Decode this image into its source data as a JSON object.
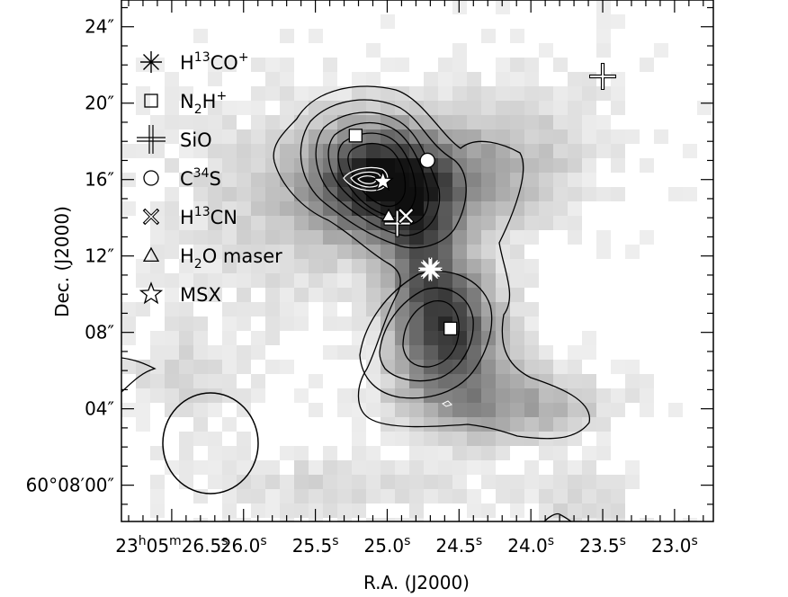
{
  "chart_data": {
    "type": "heatmap",
    "xlabel": "R.A. (J2000)",
    "ylabel": "Dec. (J2000)",
    "x_axis": {
      "unit": "seconds of R.A. (23h05m)",
      "lim": [
        26.85,
        22.73
      ],
      "inverted": true,
      "ticks": [
        {
          "value": 26.5,
          "label": "23h05m26.5s"
        },
        {
          "value": 26.0,
          "label": "26.0s"
        },
        {
          "value": 25.5,
          "label": "25.5s"
        },
        {
          "value": 25.0,
          "label": "25.0s"
        },
        {
          "value": 24.5,
          "label": "24.5s"
        },
        {
          "value": 24.0,
          "label": "24.0s"
        },
        {
          "value": 23.5,
          "label": "23.5s"
        },
        {
          "value": 23.0,
          "label": "23.0s"
        }
      ]
    },
    "y_axis": {
      "unit": "arcsec above 60d08m00s",
      "lim": [
        -1.9,
        25.4
      ],
      "ticks": [
        {
          "value": 0,
          "label": "60°08′00″"
        },
        {
          "value": 4,
          "label": "04″"
        },
        {
          "value": 8,
          "label": "08″"
        },
        {
          "value": 12,
          "label": "12″"
        },
        {
          "value": 16,
          "label": "16″"
        },
        {
          "value": 20,
          "label": "20″"
        },
        {
          "value": 24,
          "label": "24″"
        }
      ]
    },
    "grid": false,
    "colormap": "grayscale, darker = stronger emission",
    "emission_peaks": [
      {
        "ra_s": 25.02,
        "dec": 15.9,
        "peak": 1.0
      },
      {
        "ra_s": 24.58,
        "dec": 8.1,
        "peak": 0.82
      }
    ],
    "contours": "black contour levels around both cores; white contours at the northern peak",
    "legend": {
      "placement": "upper-left",
      "entries": [
        {
          "marker": "asterisk",
          "label_main": "H",
          "label_sup": "13",
          "label_tail": "CO",
          "label_sup2": "+"
        },
        {
          "marker": "square",
          "label_main": "N",
          "label_sub": "2",
          "label_tail": "H",
          "label_sup2": "+"
        },
        {
          "marker": "cross",
          "label_main": "SiO"
        },
        {
          "marker": "circle",
          "label_main": "C",
          "label_sup": "34",
          "label_tail": "S"
        },
        {
          "marker": "x",
          "label_main": "H",
          "label_sup": "13",
          "label_tail": "CN"
        },
        {
          "marker": "triangle",
          "label_main": "H",
          "label_sub": "2",
          "label_tail": "O maser"
        },
        {
          "marker": "star",
          "label_main": "MSX"
        }
      ]
    },
    "markers": [
      {
        "type": "asterisk",
        "ra_s": 24.7,
        "dec": 11.3,
        "fill": "white"
      },
      {
        "type": "square",
        "ra_s": 25.22,
        "dec": 18.3,
        "fill": "white"
      },
      {
        "type": "square",
        "ra_s": 24.56,
        "dec": 8.2,
        "fill": "white"
      },
      {
        "type": "cross",
        "ra_s": 23.5,
        "dec": 21.4,
        "fill": "white"
      },
      {
        "type": "cross",
        "ra_s": 24.93,
        "dec": 13.7,
        "fill": "white"
      },
      {
        "type": "circle",
        "ra_s": 24.72,
        "dec": 17.0,
        "fill": "white"
      },
      {
        "type": "x",
        "ra_s": 24.87,
        "dec": 14.1,
        "fill": "white"
      },
      {
        "type": "triangle",
        "ra_s": 24.99,
        "dec": 14.1,
        "fill": "white"
      },
      {
        "type": "star",
        "ra_s": 25.03,
        "dec": 15.9,
        "fill": "white"
      }
    ],
    "beam": {
      "ra_s": 26.2,
      "dec": 1.8,
      "major_arcsec": 5.5,
      "minor_arcsec": 4.8
    }
  }
}
